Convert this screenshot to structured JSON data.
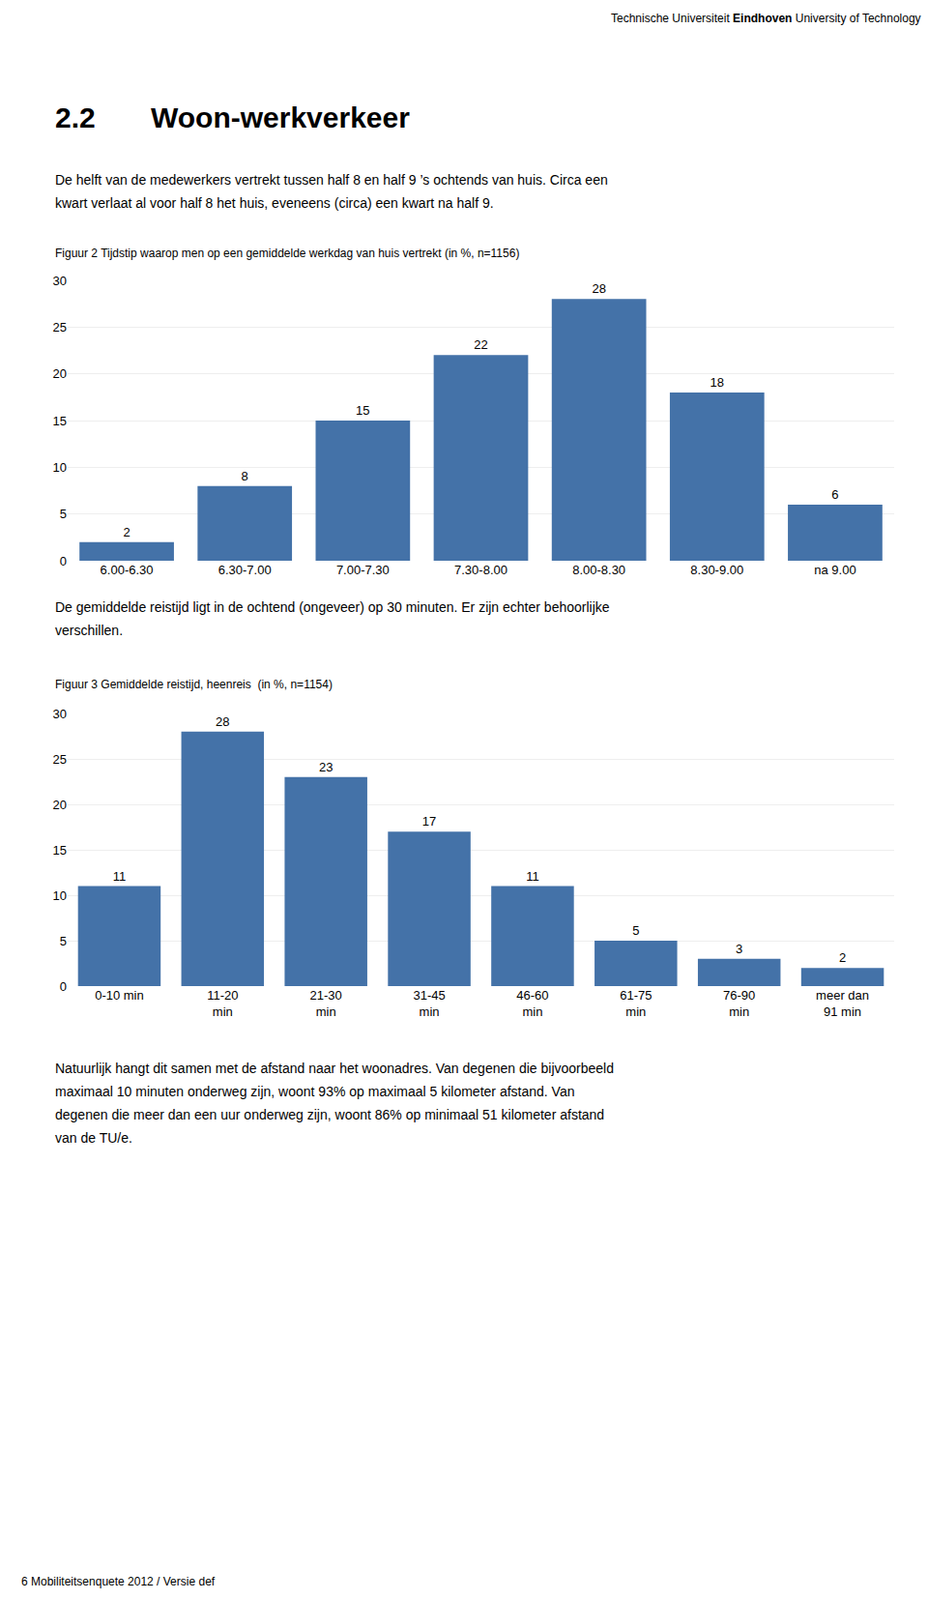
{
  "chart_data": [
    {
      "type": "bar",
      "title": "Figuur 2 Tijdstip waarop men op een gemiddelde werkdag van huis vertrekt (in %, n=1156)",
      "annotations": [
        "Technische Universiteit",
        "Eindhoven",
        "University of Technology",
        "2.2",
        "Woon-werkverkeer",
        "De helft van de medewerkers vertrekt tussen half 8 en half 9 ’s ochtends van huis. Circa een",
        "kwart verlaat al voor half 8 het huis, eveneens (circa) een kwart na half 9."
      ],
      "categories": [
        "6.00-6.30",
        "6.30-7.00",
        "7.00-7.30",
        "7.30-8.00",
        "8.00-8.30",
        "8.30-9.00",
        "na 9.00"
      ],
      "values": [
        2,
        8,
        15,
        22,
        28,
        18,
        6
      ],
      "color": "#4472A8",
      "ylim": [
        0,
        30
      ],
      "yticks": [
        0,
        5,
        10,
        15,
        20,
        25,
        30
      ],
      "grid": true,
      "data_labels": true
    },
    {
      "type": "bar",
      "title": "Figuur 3 Gemiddelde reistijd, heenreis  (in %, n=1154)",
      "annotations": [
        "De gemiddelde reistijd ligt in de ochtend (ongeveer) op 30 minuten. Er zijn echter behoorlijke",
        "verschillen.",
        "Natuurlijk hangt dit samen met de afstand naar het woonadres. Van degenen die bijvoorbeeld",
        "maximaal 10 minuten onderweg zijn, woont 93% op maximaal 5 kilometer afstand. Van",
        "degenen die meer dan een uur onderweg zijn, woont 86% op minimaal 51 kilometer afstand",
        "van de TU/e.",
        "6 Mobiliteitsenquete 2012 / Versie def"
      ],
      "categories": [
        "0-10 min",
        "11-20\nmin",
        "21-30\nmin",
        "31-45\nmin",
        "46-60\nmin",
        "61-75\nmin",
        "76-90\nmin",
        "meer dan\n91 min"
      ],
      "values": [
        11,
        28,
        23,
        17,
        11,
        5,
        3,
        2
      ],
      "color": "#4472A8",
      "ylim": [
        0,
        30
      ],
      "yticks": [
        0,
        5,
        10,
        15,
        20,
        25,
        30
      ],
      "grid": true,
      "data_labels": true
    }
  ]
}
